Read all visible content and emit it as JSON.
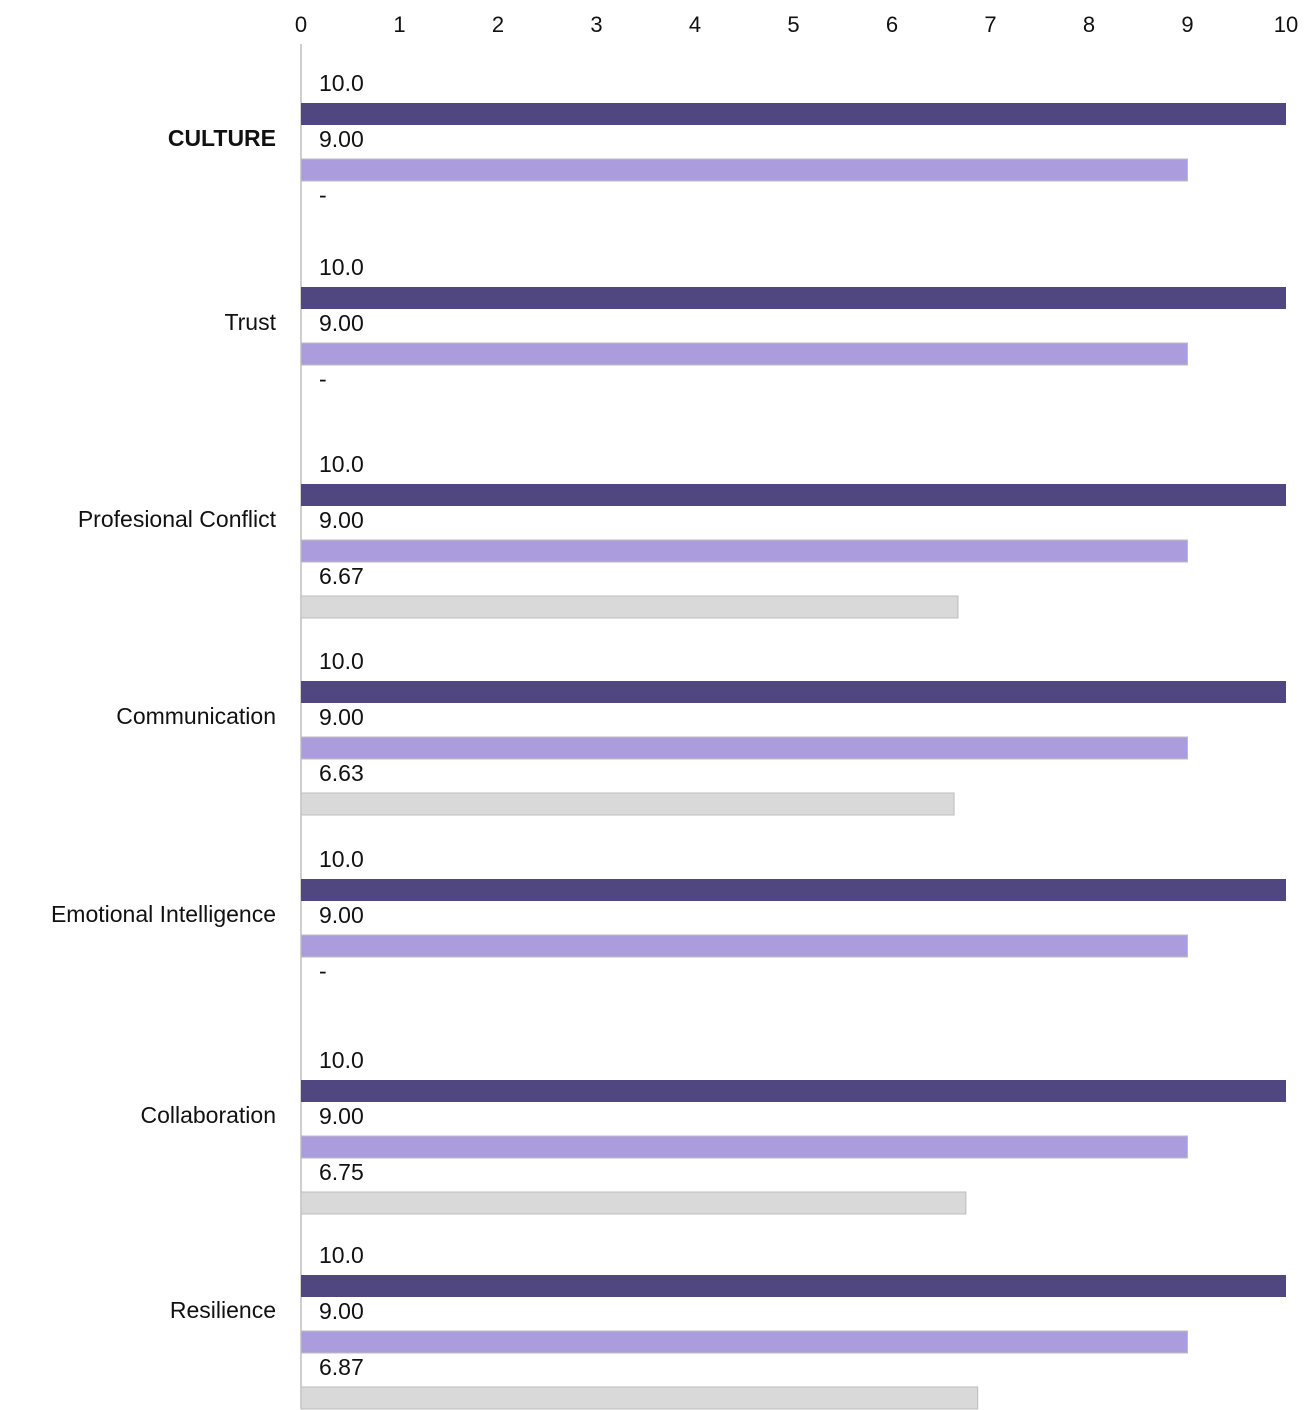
{
  "chart_data": {
    "type": "bar",
    "orientation": "horizontal",
    "xlim": [
      0,
      10
    ],
    "xticks": [
      "0",
      "1",
      "2",
      "3",
      "4",
      "5",
      "6",
      "7",
      "8",
      "9",
      "10"
    ],
    "grid": false,
    "categories": [
      "CULTURE",
      "Trust",
      "Profesional Conflict",
      "Communication",
      "Emotional Intelligence",
      "Collaboration",
      "Resilience"
    ],
    "bold_categories": [
      "CULTURE"
    ],
    "series": [
      {
        "color": "#514780",
        "values": [
          10.0,
          10.0,
          10.0,
          10.0,
          10.0,
          10.0,
          10.0
        ],
        "labels": [
          "10.0",
          "10.0",
          "10.0",
          "10.0",
          "10.0",
          "10.0",
          "10.0"
        ]
      },
      {
        "color": "#ab9ddd",
        "values": [
          9.0,
          9.0,
          9.0,
          9.0,
          9.0,
          9.0,
          9.0
        ],
        "labels": [
          "9.00",
          "9.00",
          "9.00",
          "9.00",
          "9.00",
          "9.00",
          "9.00"
        ]
      },
      {
        "color": "#d9d9d9",
        "values": [
          null,
          null,
          6.67,
          6.63,
          null,
          6.75,
          6.87
        ],
        "labels": [
          "-",
          "-",
          "6.67",
          "6.63",
          "-",
          "6.75",
          "6.87"
        ]
      }
    ]
  }
}
